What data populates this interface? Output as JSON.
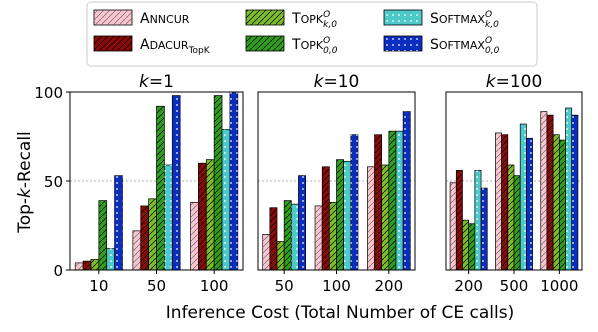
{
  "legend": {
    "entries": [
      {
        "key": "annCUR",
        "label": "ANNCUR",
        "color": "#f9c5cf",
        "hatch": "diag",
        "small_caps": true
      },
      {
        "key": "adaCUR",
        "label": "ADACUR",
        "sub": "TopK",
        "color": "#8b0a0a",
        "hatch": "diag",
        "small_caps": true
      },
      {
        "key": "topk_k0",
        "label": "TOPK",
        "sup": "O",
        "sub": "k,0",
        "color": "#7cbb2a",
        "hatch": "diag",
        "small_caps": true
      },
      {
        "key": "topk_00",
        "label": "TOPK",
        "sup": "O",
        "sub": "0,0",
        "color": "#2f9e1e",
        "hatch": "diag",
        "small_caps": true
      },
      {
        "key": "softmax_k0",
        "label": "SOFTMAX",
        "sup": "O",
        "sub": "k,0",
        "color": "#4ec9c9",
        "hatch": "dots",
        "small_caps": true
      },
      {
        "key": "softmax_00",
        "label": "SOFTMAX",
        "sup": "O",
        "sub": "0,0",
        "color": "#0a2fc0",
        "hatch": "dots",
        "small_caps": true
      }
    ]
  },
  "chart_data": [
    {
      "type": "bar",
      "title": "k=1",
      "xlabel": "Inference Cost (Total Number of CE calls)",
      "ylabel": "Top-k-Recall",
      "ylim": [
        0,
        100
      ],
      "yticks": [
        0,
        50,
        100
      ],
      "categories": [
        "10",
        "50",
        "100"
      ],
      "series": [
        {
          "name": "annCUR",
          "values": [
            4,
            22,
            38
          ]
        },
        {
          "name": "adaCUR_TopK",
          "values": [
            5,
            36,
            60
          ]
        },
        {
          "name": "TopK_k,0",
          "values": [
            6,
            40,
            62
          ]
        },
        {
          "name": "TopK_0,0",
          "values": [
            39,
            92,
            98
          ]
        },
        {
          "name": "SoftMax_k,0",
          "values": [
            12,
            59,
            79
          ]
        },
        {
          "name": "SoftMax_0,0",
          "values": [
            53,
            98,
            100
          ]
        }
      ]
    },
    {
      "type": "bar",
      "title": "k=10",
      "ylim": [
        0,
        100
      ],
      "categories": [
        "50",
        "100",
        "200"
      ],
      "series": [
        {
          "name": "annCUR",
          "values": [
            20,
            36,
            58
          ]
        },
        {
          "name": "adaCUR_TopK",
          "values": [
            35,
            58,
            76
          ]
        },
        {
          "name": "TopK_k,0",
          "values": [
            16,
            38,
            59
          ]
        },
        {
          "name": "TopK_0,0",
          "values": [
            39,
            62,
            78
          ]
        },
        {
          "name": "SoftMax_k,0",
          "values": [
            37,
            61,
            78
          ]
        },
        {
          "name": "SoftMax_0,0",
          "values": [
            53,
            76,
            89
          ]
        }
      ]
    },
    {
      "type": "bar",
      "title": "k=100",
      "ylim": [
        0,
        100
      ],
      "categories": [
        "200",
        "500",
        "1000"
      ],
      "series": [
        {
          "name": "annCUR",
          "values": [
            49,
            77,
            89
          ]
        },
        {
          "name": "adaCUR_TopK",
          "values": [
            56,
            76,
            87
          ]
        },
        {
          "name": "TopK_k,0",
          "values": [
            28,
            59,
            76
          ]
        },
        {
          "name": "TopK_0,0",
          "values": [
            26,
            53,
            73
          ]
        },
        {
          "name": "SoftMax_k,0",
          "values": [
            56,
            82,
            91
          ]
        },
        {
          "name": "SoftMax_0,0",
          "values": [
            46,
            74,
            87
          ]
        }
      ]
    }
  ]
}
